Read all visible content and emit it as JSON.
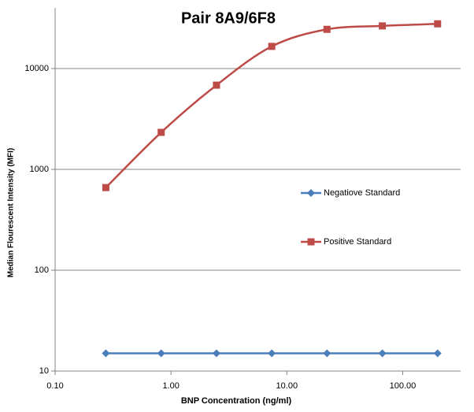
{
  "chart_data": {
    "type": "line",
    "title": "Pair 8A9/6F8",
    "x_label": "BNP Concentration (ng/ml)",
    "y_label": "Median Flourescent Intensity (MFI)",
    "x": [
      0.274,
      0.823,
      2.47,
      7.41,
      22.2,
      66.7,
      200
    ],
    "series": [
      {
        "name": "Negatiove Standard",
        "color": "#4a7ebb",
        "marker": "diamond",
        "values": [
          15,
          15,
          15,
          15,
          15,
          15,
          15
        ]
      },
      {
        "name": "Positive Standard",
        "color": "#be4b48",
        "marker": "square",
        "values": [
          660,
          2330,
          6850,
          16600,
          24500,
          26500,
          27800
        ]
      }
    ],
    "xscale": "log",
    "yscale": "log",
    "xlim": [
      0.1,
      316
    ],
    "ylim": [
      10,
      40000
    ],
    "xticks": [
      {
        "value": 0.1,
        "label": "0.10"
      },
      {
        "value": 1,
        "label": "1.00"
      },
      {
        "value": 10,
        "label": "10.00"
      },
      {
        "value": 100,
        "label": "100.00"
      }
    ],
    "yticks": [
      10,
      100,
      1000,
      10000
    ],
    "grid": true,
    "legend": "right"
  }
}
